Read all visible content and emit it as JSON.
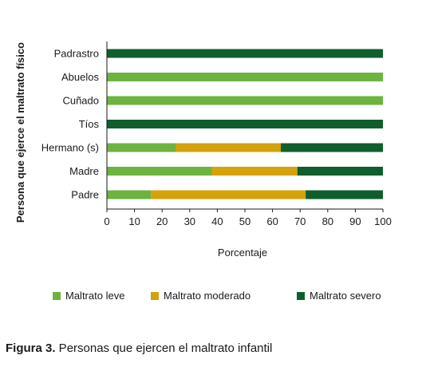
{
  "chart_data": {
    "type": "bar",
    "orientation": "horizontal",
    "stacked": true,
    "categories": [
      "Padrastro",
      "Abuelos",
      "Cuñado",
      "Tíos",
      "Hermano (s)",
      "Madre",
      "Padre"
    ],
    "series": [
      {
        "name": "Maltrato leve",
        "color": "#6db33f",
        "values": [
          0,
          100,
          100,
          0,
          25,
          38,
          16
        ]
      },
      {
        "name": "Maltrato moderado",
        "color": "#d4a20b",
        "values": [
          0,
          0,
          0,
          0,
          38,
          31,
          56
        ]
      },
      {
        "name": "Maltrato severo",
        "color": "#0e5f2d",
        "values": [
          100,
          0,
          0,
          100,
          37,
          31,
          28
        ]
      }
    ],
    "xlabel": "Porcentaje",
    "ylabel": "Persona que ejerce el maltrato físico",
    "xlim": [
      0,
      100
    ],
    "xticks": [
      0,
      10,
      20,
      30,
      40,
      50,
      60,
      70,
      80,
      90,
      100
    ],
    "grid": false,
    "legend_position": "bottom"
  },
  "caption": {
    "label": "Figura 3.",
    "text": " Personas que ejercen el maltrato infantil"
  }
}
